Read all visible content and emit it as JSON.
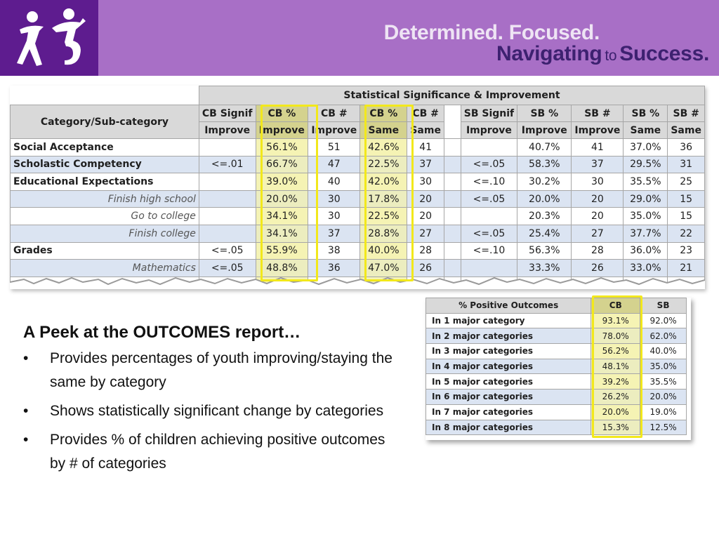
{
  "banner": {
    "slogan_line1": "Determined. Focused.",
    "slogan_line2a": "Navigating",
    "slogan_line2b": "to",
    "slogan_line2c": "Success.",
    "colors": {
      "banner": "#a86fc6",
      "logo_bg": "#5e1c8f",
      "dark_text": "#3d2170"
    }
  },
  "big_table": {
    "group_header": "Statistical Significance & Improvement",
    "category_header": "Category/Sub-category",
    "cols_top": [
      "CB Signif",
      "CB %",
      "CB #",
      "CB %",
      "CB #",
      "SB Signif",
      "SB %",
      "SB #",
      "SB %",
      "SB #"
    ],
    "cols_bottom": [
      "Improve",
      "Improve",
      "Improve",
      "Same",
      "Same",
      "Improve",
      "Improve",
      "Improve",
      "Same",
      "Same"
    ],
    "rows": [
      {
        "label": "Social Acceptance",
        "cb": [
          "",
          "56.1%",
          "51",
          "42.6%",
          "41"
        ],
        "sb": [
          "",
          "40.7%",
          "41",
          "37.0%",
          "36"
        ]
      },
      {
        "label": "Scholastic Competency",
        "cb": [
          "<=.01",
          "66.7%",
          "47",
          "22.5%",
          "37"
        ],
        "sb": [
          "<=.05",
          "58.3%",
          "37",
          "29.5%",
          "31"
        ]
      },
      {
        "label": "Educational Expectations",
        "cb": [
          "",
          "39.0%",
          "40",
          "42.0%",
          "30"
        ],
        "sb": [
          "<=.10",
          "30.2%",
          "30",
          "35.5%",
          "25"
        ]
      },
      {
        "label": "Finish high school",
        "cb": [
          "",
          "20.0%",
          "30",
          "17.8%",
          "20"
        ],
        "sb": [
          "<=.05",
          "20.0%",
          "20",
          "29.0%",
          "15"
        ]
      },
      {
        "label": "Go to college",
        "cb": [
          "",
          "34.1%",
          "30",
          "22.5%",
          "20"
        ],
        "sb": [
          "",
          "20.3%",
          "20",
          "35.0%",
          "15"
        ]
      },
      {
        "label": "Finish college",
        "cb": [
          "",
          "34.1%",
          "37",
          "28.8%",
          "27"
        ],
        "sb": [
          "<=.05",
          "25.4%",
          "27",
          "37.7%",
          "22"
        ]
      },
      {
        "label": "Grades",
        "cb": [
          "<=.05",
          "55.9%",
          "38",
          "40.0%",
          "28"
        ],
        "sb": [
          "<=.10",
          "56.3%",
          "28",
          "36.0%",
          "23"
        ]
      },
      {
        "label": "Mathematics",
        "cb": [
          "<=.05",
          "48.8%",
          "36",
          "47.0%",
          "26"
        ],
        "sb": [
          "",
          "33.3%",
          "26",
          "33.0%",
          "21"
        ]
      },
      {
        "label": "",
        "cb": [
          "",
          "",
          "",
          "",
          ""
        ],
        "sb": [
          "",
          "",
          "",
          "",
          ""
        ]
      }
    ]
  },
  "heading": "A Peek at the OUTCOMES report…",
  "bullet_glyph": "•",
  "bullets": [
    "Provides percentages of youth improving/staying the same by category",
    "Shows statistically significant change by categories",
    "Provides % of children achieving positive outcomes by # of categories"
  ],
  "small_table": {
    "headers": [
      "% Positive Outcomes",
      "CB",
      "SB"
    ],
    "rows": [
      [
        "In 1 major category",
        "93.1%",
        "92.0%"
      ],
      [
        "In 2 major categories",
        "78.0%",
        "62.0%"
      ],
      [
        "In 3 major categories",
        "56.2%",
        "40.0%"
      ],
      [
        "In 4 major categories",
        "48.1%",
        "35.0%"
      ],
      [
        "In 5 major categories",
        "39.2%",
        "35.5%"
      ],
      [
        "In 6 major categories",
        "26.2%",
        "20.0%"
      ],
      [
        "In 7 major categories",
        "20.0%",
        "19.0%"
      ],
      [
        "In 8 major categories",
        "15.3%",
        "12.5%"
      ]
    ]
  },
  "highlight_color": "#f2e81b"
}
